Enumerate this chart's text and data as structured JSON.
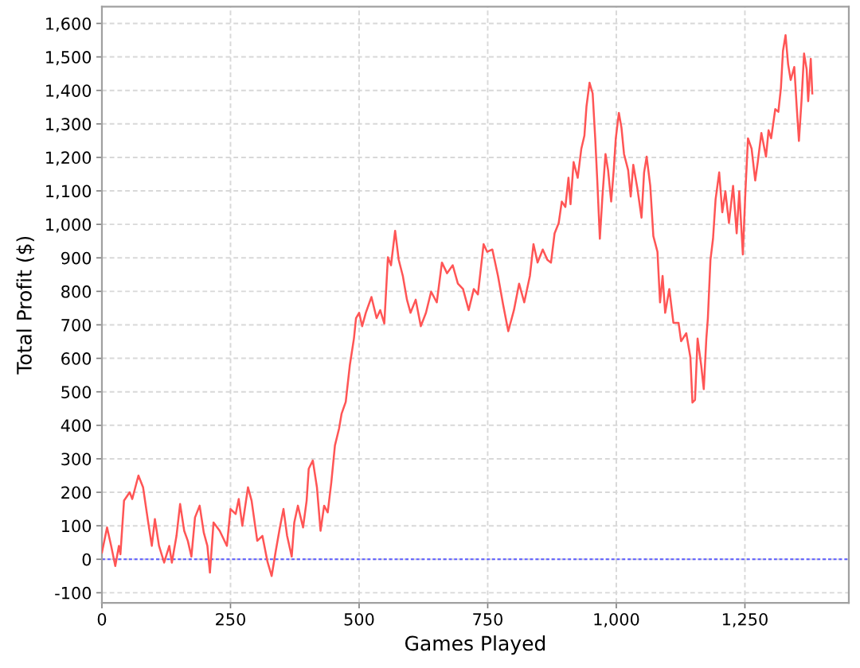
{
  "chart_data": {
    "type": "line",
    "xlabel": "Games Played",
    "ylabel": "Total Profit ($)",
    "series": [
      {
        "color": "#ff5555",
        "x": [
          0,
          10,
          18,
          26,
          33,
          36,
          43,
          54,
          59,
          71,
          80,
          90,
          97,
          103,
          111,
          121,
          131,
          136,
          145,
          152,
          160,
          167,
          174,
          181,
          190,
          198,
          205,
          210,
          217,
          229,
          243,
          250,
          260,
          266,
          273,
          284,
          291,
          302,
          312,
          322,
          330,
          338,
          346,
          353,
          360,
          369,
          374,
          381,
          391,
          398,
          402,
          410,
          418,
          425,
          432,
          439,
          446,
          453,
          461,
          466,
          474,
          482,
          490,
          494,
          500,
          506,
          513,
          524,
          534,
          541,
          549,
          556,
          562,
          570,
          577,
          585,
          593,
          600,
          610,
          620,
          630,
          640,
          651,
          661,
          671,
          682,
          692,
          702,
          713,
          723,
          731,
          742,
          749,
          759,
          770,
          780,
          790,
          801,
          811,
          821,
          832,
          839,
          847,
          857,
          866,
          873,
          880,
          888,
          894,
          901,
          907,
          911,
          917,
          925,
          932,
          938,
          942,
          948,
          954,
          959,
          963,
          968,
          973,
          979,
          984,
          990,
          995,
          999,
          1005,
          1010,
          1015,
          1023,
          1028,
          1033,
          1041,
          1049,
          1054,
          1059,
          1066,
          1072,
          1080,
          1085,
          1090,
          1095,
          1103,
          1111,
          1121,
          1126,
          1136,
          1144,
          1148,
          1153,
          1158,
          1165,
          1170,
          1175,
          1178,
          1183,
          1188,
          1193,
          1200,
          1206,
          1212,
          1219,
          1227,
          1234,
          1239,
          1246,
          1251,
          1256,
          1263,
          1270,
          1275,
          1282,
          1291,
          1296,
          1301,
          1309,
          1315,
          1320,
          1324,
          1329,
          1334,
          1339,
          1346,
          1351,
          1355,
          1360,
          1365,
          1370,
          1373,
          1378,
          1381
        ],
        "values": [
          20,
          95,
          40,
          -20,
          40,
          15,
          175,
          200,
          180,
          250,
          215,
          110,
          40,
          120,
          40,
          -10,
          40,
          -10,
          70,
          165,
          85,
          55,
          8,
          125,
          160,
          80,
          40,
          -40,
          110,
          85,
          40,
          150,
          135,
          180,
          100,
          215,
          175,
          55,
          70,
          -8,
          -50,
          25,
          95,
          150,
          70,
          8,
          110,
          160,
          95,
          175,
          270,
          295,
          215,
          85,
          160,
          140,
          230,
          340,
          390,
          435,
          470,
          580,
          660,
          720,
          736,
          696,
          736,
          783,
          720,
          744,
          704,
          902,
          878,
          981,
          894,
          846,
          775,
          736,
          775,
          696,
          736,
          799,
          767,
          886,
          854,
          878,
          823,
          807,
          744,
          807,
          791,
          941,
          918,
          925,
          846,
          760,
          681,
          744,
          823,
          767,
          846,
          941,
          886,
          925,
          894,
          886,
          973,
          1004,
          1068,
          1052,
          1139,
          1060,
          1186,
          1139,
          1226,
          1265,
          1352,
          1423,
          1391,
          1257,
          1131,
          957,
          1083,
          1210,
          1162,
          1068,
          1162,
          1257,
          1333,
          1289,
          1210,
          1162,
          1083,
          1178,
          1107,
          1020,
          1155,
          1202,
          1115,
          965,
          918,
          767,
          846,
          736,
          807,
          706,
          706,
          651,
          675,
          603,
          468,
          476,
          659,
          579,
          508,
          659,
          720,
          894,
          957,
          1075,
          1155,
          1036,
          1099,
          1004,
          1115,
          973,
          1099,
          910,
          1099,
          1257,
          1226,
          1131,
          1186,
          1273,
          1202,
          1281,
          1257,
          1344,
          1336,
          1407,
          1518,
          1565,
          1478,
          1431,
          1470,
          1344,
          1249,
          1368,
          1510,
          1463,
          1368,
          1494,
          1391
        ]
      }
    ],
    "xlim": [
      0,
      1452
    ],
    "ylim": [
      -130,
      1650
    ],
    "xticks": [
      0,
      250,
      500,
      750,
      {
        "value": 1000,
        "label": "1,000"
      },
      {
        "value": 1250,
        "label": "1,250"
      }
    ],
    "yticks": [
      -100,
      0,
      100,
      200,
      300,
      400,
      500,
      600,
      700,
      800,
      900,
      {
        "value": 1000,
        "label": "1,000"
      },
      {
        "value": 1100,
        "label": "1,100"
      },
      {
        "value": 1200,
        "label": "1,200"
      },
      {
        "value": 1300,
        "label": "1,300"
      },
      {
        "value": 1400,
        "label": "1,400"
      },
      {
        "value": 1500,
        "label": "1,500"
      },
      {
        "value": 1600,
        "label": "1,600"
      }
    ],
    "ref_lines": [
      {
        "axis": "y",
        "value": 0,
        "color": "#5b5bff",
        "line_style": "dashed"
      }
    ],
    "grid": true,
    "marker": "none",
    "line_style": "solid"
  }
}
